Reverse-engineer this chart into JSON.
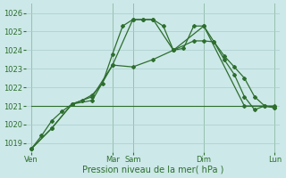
{
  "bg_color": "#cce8e8",
  "grid_color": "#aacccc",
  "line_color": "#2d6e2d",
  "xlabel": "Pression niveau de la mer( hPa )",
  "ylim": [
    1018.5,
    1026.5
  ],
  "yticks": [
    1019,
    1020,
    1021,
    1022,
    1023,
    1024,
    1025,
    1026
  ],
  "xtick_labels": [
    "Ven",
    "Mar",
    "Sam",
    "Dim",
    "Lun"
  ],
  "xtick_positions": [
    0,
    8,
    10,
    17,
    24
  ],
  "vlines": [
    0,
    8,
    10,
    17,
    24
  ],
  "series1_x": [
    0,
    1,
    2,
    3,
    4,
    5,
    6,
    7,
    8,
    9,
    10,
    11,
    12,
    13,
    14,
    15,
    16,
    17,
    18,
    19,
    20,
    21,
    22,
    23,
    24
  ],
  "series1_y": [
    1018.7,
    1019.4,
    1020.2,
    1020.7,
    1021.1,
    1021.3,
    1021.6,
    1022.2,
    1023.8,
    1025.3,
    1025.65,
    1025.65,
    1025.65,
    1025.3,
    1024.0,
    1024.1,
    1025.3,
    1025.3,
    1024.45,
    1023.5,
    1022.7,
    1021.5,
    1020.8,
    1021.0,
    1020.9
  ],
  "series2_x": [
    0,
    2,
    4,
    6,
    8,
    10,
    12,
    14,
    16,
    17,
    18,
    19,
    20,
    21,
    22,
    23,
    24
  ],
  "series2_y": [
    1018.7,
    1019.8,
    1021.1,
    1021.3,
    1023.2,
    1023.1,
    1023.5,
    1024.0,
    1024.5,
    1024.5,
    1024.45,
    1023.7,
    1023.1,
    1022.5,
    1021.5,
    1021.0,
    1020.9
  ],
  "series3_x": [
    0,
    2,
    4,
    6,
    8,
    10,
    11,
    12,
    14,
    17,
    21,
    24
  ],
  "series3_y": [
    1018.7,
    1019.8,
    1021.1,
    1021.5,
    1023.2,
    1025.65,
    1025.65,
    1025.65,
    1024.0,
    1025.3,
    1021.0,
    1021.0
  ],
  "flat_line_x": [
    0,
    24
  ],
  "flat_line_y": [
    1021.0,
    1021.0
  ]
}
